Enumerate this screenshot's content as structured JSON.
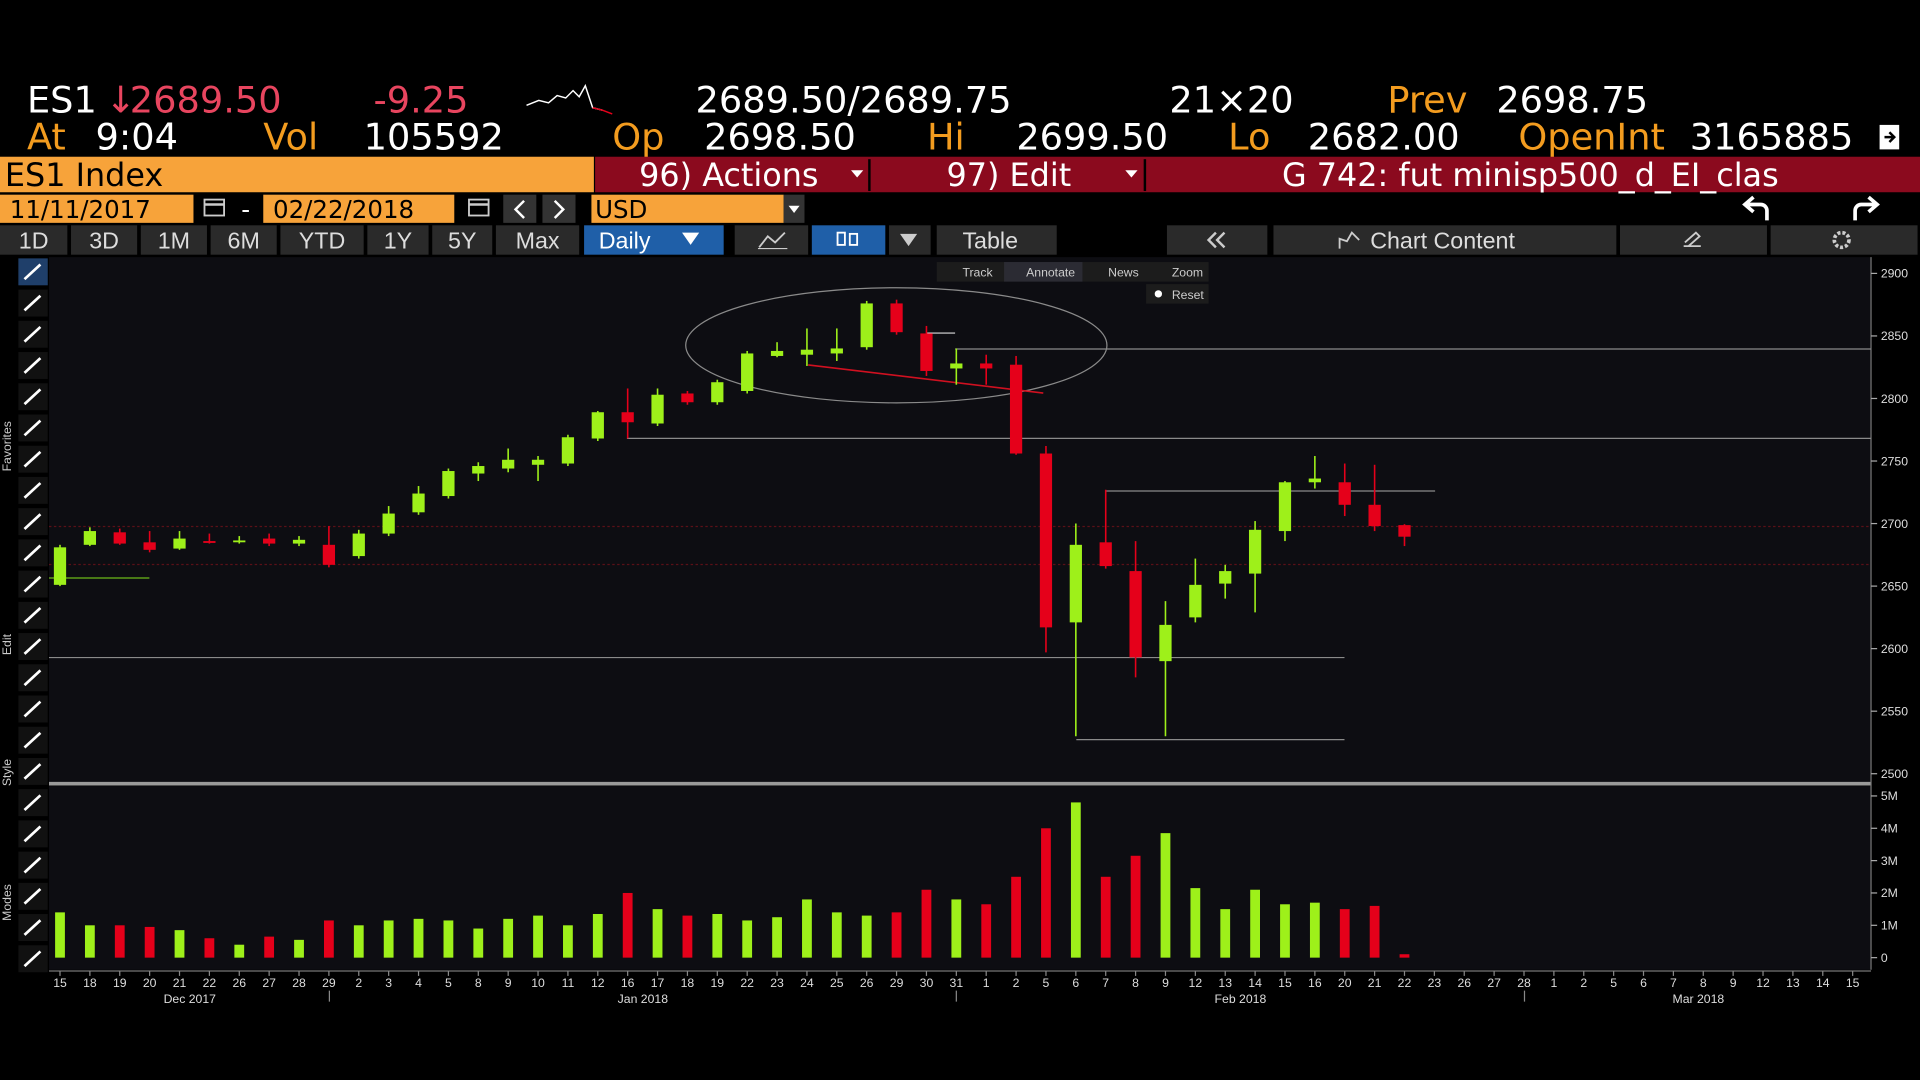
{
  "header": {
    "ticker": "ES1",
    "arrow": "↓",
    "last": "2689.50",
    "change": "-9.25",
    "bid_ask": "2689.50/2689.75",
    "size": "21×20",
    "prev_label": "Prev",
    "prev": "2698.75",
    "at_label": "At",
    "time": "9:04",
    "vol_label": "Vol",
    "vol": "105592",
    "open_label": "Op",
    "open": "2698.50",
    "hi_label": "Hi",
    "hi": "2699.50",
    "lo_label": "Lo",
    "lo": "2682.00",
    "oi_label": "OpenInt",
    "oi": "3165885"
  },
  "toolbar": {
    "security": "ES1 Index",
    "actions": "96) Actions",
    "edit": "97) Edit",
    "page": "G 742: fut minisp500_d_EI_clas",
    "start_date": "11/11/2017",
    "dash": "-",
    "end_date": "02/22/2018",
    "currency": "USD",
    "ranges": [
      "1D",
      "3D",
      "1M",
      "6M",
      "YTD",
      "1Y",
      "5Y",
      "Max"
    ],
    "period": "Daily",
    "table": "Table",
    "chart_content": "Chart Content"
  },
  "side_labels": [
    "Favorites",
    "Edit",
    "Style",
    "Modes"
  ],
  "chart_tools": [
    "Track",
    "Annotate",
    "News",
    "Zoom",
    "Reset"
  ],
  "chart_data": {
    "type": "candlestick",
    "categories": [
      "15",
      "18",
      "19",
      "20",
      "21",
      "22",
      "26",
      "27",
      "28",
      "29",
      "2",
      "3",
      "4",
      "5",
      "8",
      "9",
      "10",
      "11",
      "12",
      "16",
      "17",
      "18",
      "19",
      "22",
      "23",
      "24",
      "25",
      "26",
      "29",
      "30",
      "31",
      "1",
      "2",
      "5",
      "6",
      "7",
      "8",
      "9",
      "12",
      "13",
      "14",
      "15",
      "16",
      "20",
      "21",
      "22",
      "23",
      "26",
      "27",
      "28",
      "1",
      "2",
      "5",
      "6",
      "7",
      "8",
      "9",
      "12",
      "13",
      "14",
      "15"
    ],
    "month_labels": [
      "Dec 2017",
      "Jan 2018",
      "Feb 2018",
      "Mar 2018"
    ],
    "open": [
      2651,
      2683,
      2693,
      2685,
      2680,
      2686,
      2686,
      2688,
      2684,
      2683,
      2674,
      2692,
      2709,
      2722,
      2740,
      2744,
      2747,
      2748,
      2768,
      2789,
      2780,
      2804,
      2797,
      2806,
      2834,
      2835,
      2836,
      2841,
      2876,
      2852,
      2824,
      2828,
      2827,
      2756,
      2621,
      2685,
      2662,
      2590,
      2625,
      2652,
      2660,
      2694,
      2733,
      2733,
      2715,
      2698.75,
      null,
      null,
      null,
      null,
      null,
      null,
      null,
      null,
      null,
      null,
      null,
      null,
      null,
      null,
      null
    ],
    "high": [
      2683,
      2697,
      2696,
      2694,
      2694,
      2692,
      2690,
      2692,
      2690,
      2698,
      2695,
      2714,
      2730,
      2744,
      2749,
      2760,
      2754,
      2771,
      2790,
      2808,
      2808,
      2806,
      2815,
      2838,
      2845,
      2856,
      2856,
      2878,
      2879,
      2858,
      2840,
      2835,
      2834,
      2762,
      2700,
      2727,
      2686,
      2638,
      2672,
      2667,
      2702,
      2734,
      2754,
      2748,
      2747,
      2699.5,
      null,
      null,
      null,
      null,
      null,
      null,
      null,
      null,
      null,
      null,
      null,
      null,
      null,
      null,
      null
    ],
    "low": [
      2650,
      2682,
      2683,
      2677,
      2679,
      2684,
      2684,
      2682,
      2682,
      2665,
      2672,
      2690,
      2707,
      2720,
      2734,
      2741,
      2734,
      2746,
      2766,
      2768,
      2778,
      2795,
      2795,
      2804,
      2833,
      2826,
      2830,
      2839,
      2851,
      2818,
      2811,
      2811,
      2755,
      2597,
      2530,
      2664,
      2577,
      2530,
      2621,
      2640,
      2629,
      2686,
      2728,
      2706,
      2694,
      2682,
      null,
      null,
      null,
      null,
      null,
      null,
      null,
      null,
      null,
      null,
      null,
      null,
      null,
      null,
      null
    ],
    "close": [
      2681,
      2694,
      2684,
      2679,
      2688,
      2685.5,
      2686.5,
      2684,
      2687,
      2667,
      2692,
      2708,
      2724,
      2742,
      2746,
      2751,
      2751,
      2769,
      2789,
      2781,
      2803,
      2797,
      2813,
      2836,
      2838,
      2839,
      2840,
      2876,
      2853,
      2822,
      2828,
      2824,
      2756,
      2617,
      2683,
      2666,
      2593,
      2619,
      2651,
      2662,
      2695,
      2733,
      2736,
      2715,
      2698,
      2689.5,
      null,
      null,
      null,
      null,
      null,
      null,
      null,
      null,
      null,
      null,
      null,
      null,
      null,
      null,
      null
    ],
    "volume": [
      1400000,
      1000000,
      1000000,
      950000,
      850000,
      600000,
      400000,
      650000,
      550000,
      1150000,
      1000000,
      1150000,
      1200000,
      1150000,
      900000,
      1200000,
      1300000,
      1000000,
      1350000,
      2000000,
      1500000,
      1300000,
      1350000,
      1150000,
      1250000,
      1800000,
      1400000,
      1300000,
      1400000,
      2100000,
      1800000,
      1650000,
      2500000,
      4000000,
      4800000,
      2500000,
      3150000,
      3850000,
      2150000,
      1500000,
      2100000,
      1650000,
      1700000,
      1500000,
      1600000,
      105592,
      null,
      null,
      null,
      null,
      null,
      null,
      null,
      null,
      null,
      null,
      null,
      null,
      null,
      null,
      null
    ],
    "up_color": "#9ef01a",
    "down_color": "#e5001a",
    "ylim": [
      2494,
      2913
    ],
    "yticks": [
      2500,
      2550,
      2600,
      2650,
      2700,
      2750,
      2800,
      2850,
      2900
    ],
    "vol_ylim": [
      -300000,
      5190000
    ],
    "vol_yticks": [
      0,
      {
        "value": 1000000,
        "label": "1M"
      },
      {
        "value": 2000000,
        "label": "2M"
      },
      {
        "value": 3000000,
        "label": "3M"
      },
      {
        "value": 4000000,
        "label": "4M"
      },
      {
        "value": 5000000,
        "label": "5M"
      }
    ],
    "grid": false
  }
}
